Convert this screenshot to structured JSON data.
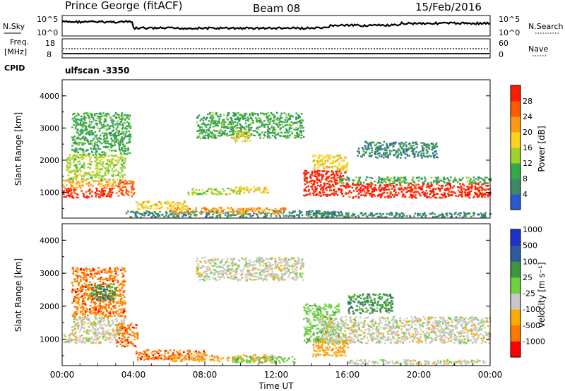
{
  "header": {
    "station": "Prince George (fitACF)",
    "beam": "Beam 08",
    "date": "15/Feb/2016"
  },
  "noise_panel": {
    "left_label": "N.Sky",
    "left_ticks": [
      "10^5",
      "10^0"
    ],
    "right_label": "N.Search",
    "right_ticks": [
      "10^5",
      "10^0"
    ]
  },
  "freq_panel": {
    "left_label_line1": "Freq.",
    "left_label_line2": "[MHz]",
    "left_ticks": [
      "18",
      "8"
    ],
    "right_ticks": [
      "60",
      "0"
    ],
    "right_label": "Nave",
    "cpid_label": "CPID",
    "cpid_text": "ulfscan -3350"
  },
  "colors": {
    "power": [
      "#1414ff",
      "#285ad2",
      "#3c8a64",
      "#34a84a",
      "#a0d22c",
      "#ffd21e",
      "#ff9a14",
      "#ff5a00",
      "#ff1a00"
    ],
    "velocity": [
      "#ff0000",
      "#ff7800",
      "#ffaa00",
      "#c8c8c8",
      "#6ed23c",
      "#3c963c",
      "#2e5aa0",
      "#1e32c8"
    ],
    "ground_scatter": "#c0c0c0"
  },
  "chart_data": [
    {
      "type": "heatmap",
      "title": "Power",
      "ylabel": "Slant Range [km]",
      "colorbar_label": "Power [dB]",
      "colorbar_ticks": [
        "4",
        "8",
        "12",
        "16",
        "20",
        "24",
        "28"
      ],
      "yticks": [
        "1000",
        "2000",
        "3000",
        "4000"
      ],
      "ylim": [
        200,
        4500
      ],
      "xlim": [
        0,
        24
      ],
      "x_unit": "hours UT",
      "regions": [
        {
          "x": [
            0.0,
            2.8
          ],
          "y": [
            850,
            1150
          ],
          "level": 7
        },
        {
          "x": [
            0.0,
            3.0
          ],
          "y": [
            1150,
            1400
          ],
          "level": 5
        },
        {
          "x": [
            0.2,
            3.5
          ],
          "y": [
            1400,
            2200
          ],
          "level": 3
        },
        {
          "x": [
            0.5,
            3.8
          ],
          "y": [
            2200,
            3500
          ],
          "level": 2
        },
        {
          "x": [
            3.0,
            4.0
          ],
          "y": [
            900,
            1400
          ],
          "level": 6
        },
        {
          "x": [
            3.5,
            16.0
          ],
          "y": [
            250,
            450
          ],
          "level": 1
        },
        {
          "x": [
            4.0,
            7.0
          ],
          "y": [
            500,
            750
          ],
          "level": 4
        },
        {
          "x": [
            6.0,
            12.5
          ],
          "y": [
            350,
            550
          ],
          "level": 5
        },
        {
          "x": [
            7.0,
            10.0
          ],
          "y": [
            950,
            1150
          ],
          "level": 3
        },
        {
          "x": [
            9.5,
            11.5
          ],
          "y": [
            1000,
            1200
          ],
          "level": 4
        },
        {
          "x": [
            7.5,
            13.5
          ],
          "y": [
            2700,
            3500
          ],
          "level": 2
        },
        {
          "x": [
            9.5,
            10.5
          ],
          "y": [
            2600,
            2900
          ],
          "level": 4
        },
        {
          "x": [
            13.5,
            16.0
          ],
          "y": [
            900,
            1700
          ],
          "level": 7
        },
        {
          "x": [
            14.0,
            16.0
          ],
          "y": [
            1700,
            2200
          ],
          "level": 4
        },
        {
          "x": [
            15.5,
            24.0
          ],
          "y": [
            1300,
            1500
          ],
          "level": 2
        },
        {
          "x": [
            16.0,
            24.0
          ],
          "y": [
            850,
            1300
          ],
          "level": 7
        },
        {
          "x": [
            16.5,
            21.0
          ],
          "y": [
            2100,
            2600
          ],
          "level": 1
        },
        {
          "x": [
            13.5,
            24.0
          ],
          "y": [
            250,
            400
          ],
          "level": 1
        }
      ]
    },
    {
      "type": "heatmap",
      "title": "Velocity",
      "ylabel": "Slant Range [km]",
      "xlabel": "Time UT",
      "colorbar_label": "Velocity [m s⁻¹]",
      "colorbar_ticks": [
        "-1000",
        "-500",
        "-100",
        "-25",
        "25",
        "100",
        "500",
        "1000"
      ],
      "yticks": [
        "1000",
        "2000",
        "3000",
        "4000"
      ],
      "xticks": [
        "00:00",
        "04:00",
        "08:00",
        "12:00",
        "16:00",
        "20:00",
        "00:00"
      ],
      "ylim": [
        200,
        4500
      ],
      "xlim": [
        0,
        24
      ],
      "regions": [
        {
          "x": [
            0.0,
            3.0
          ],
          "y": [
            900,
            1200
          ],
          "level": 3
        },
        {
          "x": [
            0.5,
            3.5
          ],
          "y": [
            1200,
            1700
          ],
          "level": 3
        },
        {
          "x": [
            0.5,
            3.5
          ],
          "y": [
            1700,
            3200
          ],
          "level": 1
        },
        {
          "x": [
            1.5,
            3.0
          ],
          "y": [
            2200,
            2700
          ],
          "level": 5
        },
        {
          "x": [
            3.0,
            4.2
          ],
          "y": [
            800,
            1500
          ],
          "level": 1
        },
        {
          "x": [
            4.0,
            8.0
          ],
          "y": [
            400,
            700
          ],
          "level": 1
        },
        {
          "x": [
            6.0,
            12.0
          ],
          "y": [
            350,
            550
          ],
          "level": 2
        },
        {
          "x": [
            9.5,
            13.0
          ],
          "y": [
            300,
            500
          ],
          "level": 4
        },
        {
          "x": [
            7.5,
            13.5
          ],
          "y": [
            2800,
            3500
          ],
          "level": 3
        },
        {
          "x": [
            13.5,
            15.5
          ],
          "y": [
            900,
            2100
          ],
          "level": 4
        },
        {
          "x": [
            14.0,
            16.0
          ],
          "y": [
            500,
            1000
          ],
          "level": 2
        },
        {
          "x": [
            14.5,
            24.0
          ],
          "y": [
            900,
            1700
          ],
          "level": 3
        },
        {
          "x": [
            16.0,
            18.5
          ],
          "y": [
            1800,
            2400
          ],
          "level": 5
        },
        {
          "x": [
            16.0,
            24.0
          ],
          "y": [
            250,
            400
          ],
          "level": 3
        }
      ]
    }
  ]
}
